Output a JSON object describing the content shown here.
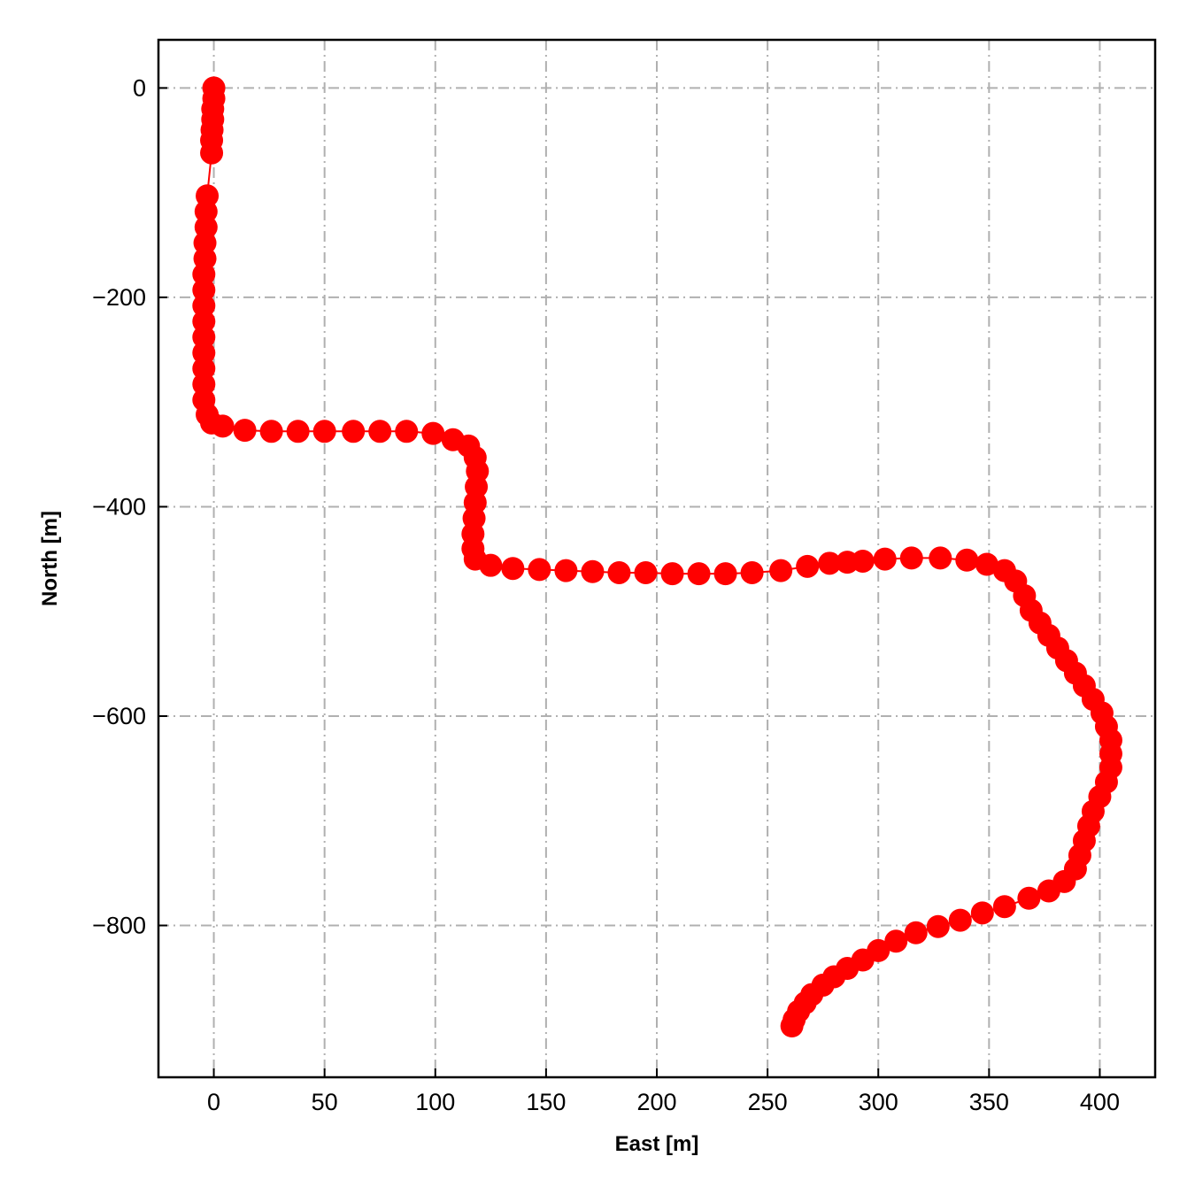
{
  "chart_data": {
    "type": "line",
    "title": "",
    "xlabel": "East [m]",
    "ylabel": "North [m]",
    "xlim": [
      -25,
      425
    ],
    "ylim": [
      -945,
      46
    ],
    "x_ticks": [
      0,
      50,
      100,
      150,
      200,
      250,
      300,
      350,
      400
    ],
    "y_ticks": [
      0,
      -200,
      -400,
      -600,
      -800
    ],
    "x_tick_labels": [
      "0",
      "50",
      "100",
      "150",
      "200",
      "250",
      "300",
      "350",
      "400"
    ],
    "y_tick_labels": [
      "0",
      "−200",
      "−400",
      "−600",
      "−800"
    ],
    "grid": true,
    "legend": false,
    "series": [
      {
        "color": "#ff0000",
        "marker": "circle",
        "points": [
          [
            0,
            0
          ],
          [
            0,
            -10
          ],
          [
            -0.5,
            -20
          ],
          [
            -0.5,
            -30
          ],
          [
            -0.8,
            -40
          ],
          [
            -1,
            -50
          ],
          [
            -1,
            -62
          ],
          [
            -3,
            -103
          ],
          [
            -3.5,
            -118
          ],
          [
            -3.5,
            -133
          ],
          [
            -4,
            -148
          ],
          [
            -4,
            -163
          ],
          [
            -4.5,
            -178
          ],
          [
            -4.5,
            -193
          ],
          [
            -4.5,
            -208
          ],
          [
            -4.5,
            -223
          ],
          [
            -4.5,
            -238
          ],
          [
            -4.5,
            -253
          ],
          [
            -4.5,
            -268
          ],
          [
            -4.5,
            -283
          ],
          [
            -4.5,
            -298
          ],
          [
            -3,
            -312
          ],
          [
            -1,
            -320
          ],
          [
            4,
            -323
          ],
          [
            14,
            -327
          ],
          [
            26,
            -328
          ],
          [
            38,
            -328
          ],
          [
            50,
            -328
          ],
          [
            63,
            -328
          ],
          [
            75,
            -328
          ],
          [
            87,
            -328
          ],
          [
            99,
            -330
          ],
          [
            108,
            -336
          ],
          [
            115,
            -342
          ],
          [
            118,
            -353
          ],
          [
            119,
            -366
          ],
          [
            118.5,
            -381
          ],
          [
            118,
            -396
          ],
          [
            117.5,
            -411
          ],
          [
            117,
            -426
          ],
          [
            117,
            -440
          ],
          [
            118,
            -450
          ],
          [
            125,
            -456
          ],
          [
            135,
            -459
          ],
          [
            147,
            -460
          ],
          [
            159,
            -461
          ],
          [
            171,
            -462
          ],
          [
            183,
            -463
          ],
          [
            195,
            -463
          ],
          [
            207,
            -464
          ],
          [
            219,
            -464
          ],
          [
            231,
            -464
          ],
          [
            243,
            -463
          ],
          [
            256,
            -461
          ],
          [
            268,
            -457
          ],
          [
            278,
            -454
          ],
          [
            286,
            -453
          ],
          [
            293,
            -452
          ],
          [
            303,
            -450
          ],
          [
            315,
            -449
          ],
          [
            328,
            -449
          ],
          [
            340,
            -451
          ],
          [
            349,
            -455
          ],
          [
            357,
            -461
          ],
          [
            362,
            -471
          ],
          [
            366,
            -485
          ],
          [
            369,
            -499
          ],
          [
            373,
            -511
          ],
          [
            377,
            -523
          ],
          [
            381,
            -535
          ],
          [
            385,
            -547
          ],
          [
            389,
            -559
          ],
          [
            393,
            -571
          ],
          [
            397,
            -584
          ],
          [
            401,
            -597
          ],
          [
            403,
            -610
          ],
          [
            405,
            -623
          ],
          [
            405,
            -636
          ],
          [
            405,
            -649
          ],
          [
            403,
            -663
          ],
          [
            400,
            -677
          ],
          [
            397,
            -691
          ],
          [
            395,
            -705
          ],
          [
            393,
            -719
          ],
          [
            391,
            -733
          ],
          [
            389,
            -746
          ],
          [
            384,
            -758
          ],
          [
            377,
            -767
          ],
          [
            368,
            -774
          ],
          [
            357,
            -782
          ],
          [
            347,
            -788
          ],
          [
            337,
            -795
          ],
          [
            327,
            -801
          ],
          [
            317,
            -807
          ],
          [
            308,
            -815
          ],
          [
            300,
            -824
          ],
          [
            293,
            -833
          ],
          [
            286,
            -841
          ],
          [
            280,
            -849
          ],
          [
            275,
            -857
          ],
          [
            270,
            -866
          ],
          [
            267,
            -874
          ],
          [
            264,
            -882
          ],
          [
            262,
            -890
          ],
          [
            261,
            -896
          ]
        ]
      }
    ]
  }
}
